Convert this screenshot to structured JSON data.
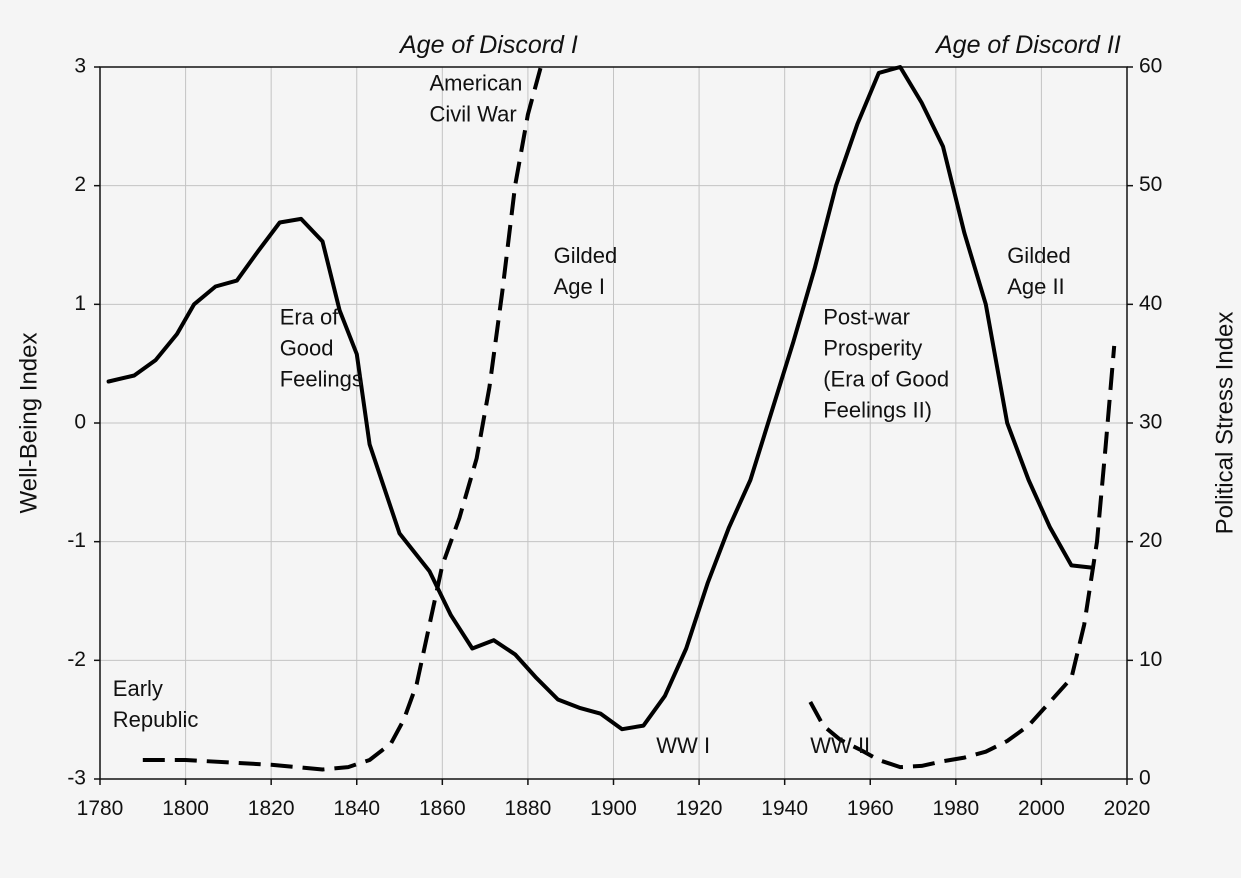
{
  "chart_data": {
    "type": "line",
    "x_range": [
      1780,
      2020
    ],
    "x_ticks": [
      1780,
      1800,
      1820,
      1840,
      1860,
      1880,
      1900,
      1920,
      1940,
      1960,
      1980,
      2000,
      2020
    ],
    "left_axis": {
      "label": "Well-Being Index",
      "range": [
        -3,
        3
      ],
      "ticks": [
        -3,
        -2,
        -1,
        0,
        1,
        2,
        3
      ]
    },
    "right_axis": {
      "label": "Political Stress Index",
      "range": [
        0,
        60
      ],
      "ticks": [
        0,
        10,
        20,
        30,
        40,
        50,
        60
      ]
    },
    "grid": true,
    "series": [
      {
        "axis": "left",
        "style": "solid",
        "points": [
          [
            1782,
            0.35
          ],
          [
            1788,
            0.4
          ],
          [
            1793,
            0.53
          ],
          [
            1798,
            0.75
          ],
          [
            1802,
            1.0
          ],
          [
            1807,
            1.15
          ],
          [
            1812,
            1.2
          ],
          [
            1817,
            1.45
          ],
          [
            1822,
            1.69
          ],
          [
            1827,
            1.72
          ],
          [
            1832,
            1.53
          ],
          [
            1836,
            0.95
          ],
          [
            1840,
            0.58
          ],
          [
            1843,
            -0.18
          ],
          [
            1850,
            -0.93
          ],
          [
            1857,
            -1.25
          ],
          [
            1862,
            -1.62
          ],
          [
            1867,
            -1.9
          ],
          [
            1872,
            -1.83
          ],
          [
            1877,
            -1.95
          ],
          [
            1882,
            -2.15
          ],
          [
            1887,
            -2.33
          ],
          [
            1892,
            -2.4
          ],
          [
            1897,
            -2.45
          ],
          [
            1902,
            -2.58
          ],
          [
            1907,
            -2.55
          ],
          [
            1912,
            -2.3
          ],
          [
            1917,
            -1.9
          ],
          [
            1922,
            -1.35
          ],
          [
            1927,
            -0.88
          ],
          [
            1932,
            -0.48
          ],
          [
            1937,
            0.1
          ],
          [
            1942,
            0.68
          ],
          [
            1947,
            1.3
          ],
          [
            1952,
            2.0
          ],
          [
            1957,
            2.52
          ],
          [
            1962,
            2.95
          ],
          [
            1967,
            3.0
          ],
          [
            1972,
            2.7
          ],
          [
            1977,
            2.33
          ],
          [
            1982,
            1.6
          ],
          [
            1987,
            1.0
          ],
          [
            1992,
            0.0
          ],
          [
            1997,
            -0.48
          ],
          [
            2002,
            -0.88
          ],
          [
            2007,
            -1.2
          ],
          [
            2012,
            -1.22
          ]
        ]
      },
      {
        "axis": "right",
        "style": "dashed",
        "segments": [
          [
            [
              1790,
              1.6
            ],
            [
              1800,
              1.6
            ],
            [
              1810,
              1.4
            ],
            [
              1820,
              1.2
            ],
            [
              1826,
              1.0
            ],
            [
              1832,
              0.8
            ],
            [
              1838,
              1.0
            ],
            [
              1843,
              1.6
            ],
            [
              1848,
              3.0
            ],
            [
              1851,
              5.0
            ],
            [
              1854,
              8.0
            ],
            [
              1857,
              13.0
            ],
            [
              1860,
              18.0
            ],
            [
              1864,
              22.0
            ],
            [
              1868,
              27.0
            ],
            [
              1871,
              33.0
            ],
            [
              1874,
              41.0
            ],
            [
              1877,
              50.0
            ],
            [
              1880,
              56.0
            ],
            [
              1883,
              60.0
            ]
          ],
          [
            [
              1946,
              6.5
            ],
            [
              1949,
              4.5
            ],
            [
              1953,
              3.3
            ],
            [
              1958,
              2.4
            ],
            [
              1962,
              1.6
            ],
            [
              1967,
              1.0
            ],
            [
              1972,
              1.1
            ],
            [
              1977,
              1.5
            ],
            [
              1982,
              1.8
            ],
            [
              1987,
              2.3
            ],
            [
              1992,
              3.2
            ],
            [
              1997,
              4.5
            ],
            [
              2002,
              6.5
            ],
            [
              2007,
              8.5
            ],
            [
              2010,
              13.0
            ],
            [
              2013,
              20.0
            ],
            [
              2015,
              28.0
            ],
            [
              2017,
              36.5
            ]
          ]
        ]
      }
    ],
    "top_labels": [
      "Age of Discord I",
      "Age of Discord II"
    ],
    "annotations": [
      {
        "lines": [
          "American",
          "Civil War"
        ],
        "x": 1857,
        "y": 2.8
      },
      {
        "lines": [
          "Gilded",
          "Age I"
        ],
        "x": 1886,
        "y": 1.35
      },
      {
        "lines": [
          "Era of",
          "Good",
          "Feelings"
        ],
        "x": 1822,
        "y": 0.83
      },
      {
        "lines": [
          "Early",
          "Republic"
        ],
        "x": 1783,
        "y": -2.3
      },
      {
        "lines": [
          "WW I"
        ],
        "x": 1910,
        "y": -2.78
      },
      {
        "lines": [
          "WW II"
        ],
        "x": 1946,
        "y": -2.78
      },
      {
        "lines": [
          "Post-war",
          "Prosperity",
          "(Era of Good",
          "Feelings II)"
        ],
        "x": 1949,
        "y": 0.83
      },
      {
        "lines": [
          "Gilded",
          "Age II"
        ],
        "x": 1992,
        "y": 1.35
      }
    ]
  }
}
